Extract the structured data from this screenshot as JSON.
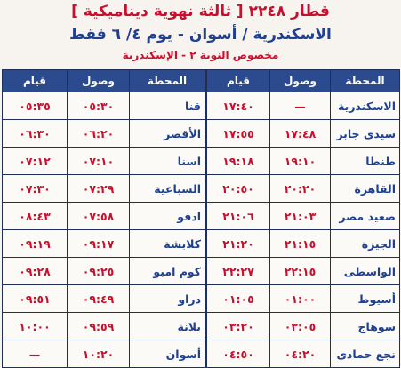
{
  "header": {
    "title": "قطار ٢٢٤٨ [ ثالثة نهوية ديناميكية ]",
    "route": "الاسكندرية / أسوان  -  يوم ٤/ ٦ فقط",
    "note": "مخصوص النوبة ٢ - الإسكندرية"
  },
  "table": {
    "columns": [
      "المحطة",
      "وصول",
      "قيام",
      "المحطة",
      "وصول",
      "قيام"
    ],
    "rows": [
      [
        "الاسكندرية",
        "—",
        "١٧:٤٠",
        "قنا",
        "٠٥:٣٠",
        "٠٥:٣٥"
      ],
      [
        "سيدى جابر",
        "١٧:٤٨",
        "١٧:٥٥",
        "الأقصر",
        "٠٦:٢٠",
        "٠٦:٣٠"
      ],
      [
        "طنطا",
        "١٩:١٠",
        "١٩:١٨",
        "اسنا",
        "٠٧:١٠",
        "٠٧:١٢"
      ],
      [
        "القاهرة",
        "٢٠:٢٠",
        "٢٠:٥٠",
        "السباعية",
        "٠٧:٢٩",
        "٠٧:٣٠"
      ],
      [
        "صعيد مصر",
        "٢١:٠٣",
        "٢١:٠٦",
        "ادفو",
        "٠٧:٥٨",
        "٠٨:٤٣"
      ],
      [
        "الجيزة",
        "٢١:١٥",
        "٢١:٢٠",
        "كلابشة",
        "٠٩:١٧",
        "٠٩:١٩"
      ],
      [
        "الواسطى",
        "٢٢:١٥",
        "٢٢:٢٧",
        "كوم امبو",
        "٠٩:٢٥",
        "٠٩:٢٨"
      ],
      [
        "أسيوط",
        "٠١:٠٠",
        "٠١:٠٥",
        "دراو",
        "٠٩:٤٩",
        "٠٩:٥١"
      ],
      [
        "سوهاج",
        "٠٣:٠٥",
        "٠٣:٢٠",
        "بلانة",
        "٠٩:٥٩",
        "١٠:٠٠"
      ],
      [
        "نجع حمادى",
        "٠٤:٢٠",
        "٠٤:٥٠",
        "أسوان",
        "١٠:٢٠",
        "—"
      ]
    ]
  }
}
